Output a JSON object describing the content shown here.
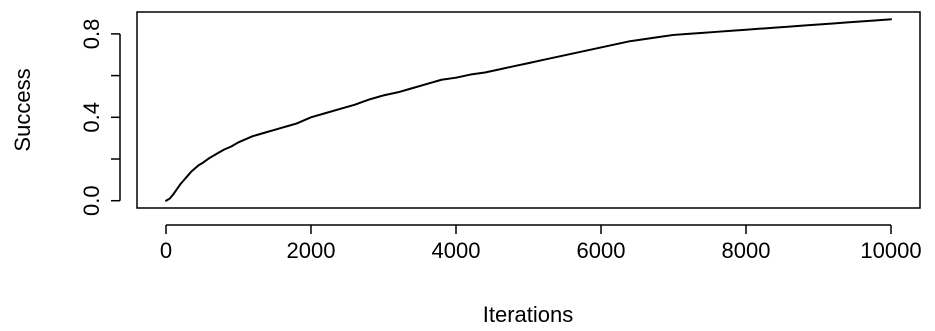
{
  "chart_data": {
    "type": "line",
    "title": "",
    "xlabel": "Iterations",
    "ylabel": "Success",
    "xlim": [
      -400,
      10400
    ],
    "ylim": [
      -0.035,
      0.905
    ],
    "xticks": [
      0,
      2000,
      4000,
      6000,
      8000,
      10000
    ],
    "xtick_labels": [
      "0",
      "2000",
      "4000",
      "6000",
      "8000",
      "10000"
    ],
    "yticks": [
      0.0,
      0.2,
      0.4,
      0.6,
      0.8
    ],
    "ytick_labels": [
      "0.0",
      "",
      "0.4",
      "",
      "0.8"
    ],
    "grid": false,
    "legend": "none",
    "line_color": "#000000",
    "series": [
      {
        "x": [
          0,
          50,
          100,
          150,
          200,
          250,
          300,
          350,
          400,
          450,
          500,
          600,
          700,
          800,
          900,
          1000,
          1100,
          1200,
          1300,
          1400,
          1500,
          1600,
          1700,
          1800,
          1900,
          2000,
          2200,
          2400,
          2600,
          2800,
          3000,
          3200,
          3400,
          3600,
          3800,
          4000,
          4200,
          4400,
          4600,
          4800,
          5000,
          5200,
          5400,
          5600,
          5800,
          6000,
          6200,
          6400,
          6600,
          6800,
          7000,
          7200,
          7400,
          7600,
          7800,
          8000,
          8200,
          8400,
          8600,
          8800,
          9000,
          9200,
          9400,
          9600,
          9800,
          10000
        ],
        "y": [
          0.0,
          0.01,
          0.03,
          0.055,
          0.08,
          0.1,
          0.12,
          0.14,
          0.155,
          0.17,
          0.18,
          0.205,
          0.225,
          0.245,
          0.26,
          0.28,
          0.295,
          0.31,
          0.32,
          0.33,
          0.34,
          0.35,
          0.36,
          0.37,
          0.385,
          0.4,
          0.42,
          0.44,
          0.46,
          0.485,
          0.505,
          0.52,
          0.54,
          0.56,
          0.58,
          0.59,
          0.605,
          0.615,
          0.63,
          0.645,
          0.66,
          0.675,
          0.69,
          0.705,
          0.72,
          0.735,
          0.75,
          0.765,
          0.775,
          0.785,
          0.795,
          0.8,
          0.805,
          0.81,
          0.815,
          0.82,
          0.825,
          0.83,
          0.835,
          0.84,
          0.845,
          0.85,
          0.855,
          0.86,
          0.865,
          0.87
        ]
      }
    ]
  }
}
